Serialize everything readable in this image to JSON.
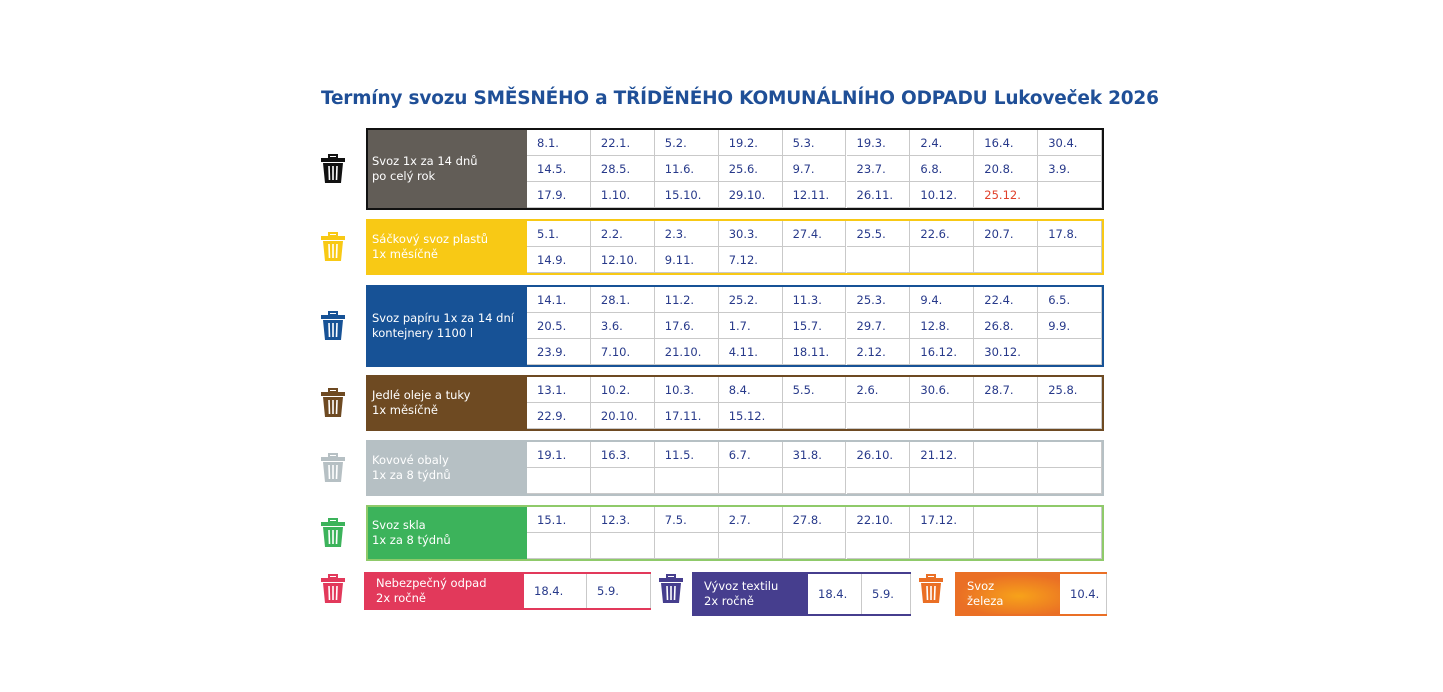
{
  "title": "Termíny svozu SMĚSNÉHO a TŘÍDĚNÉHO KOMUNÁLNÍHO ODPADU Lukoveček 2026",
  "collections": [
    {
      "label": [
        "Svoz 1x za 14 dnů",
        "po celý rok"
      ],
      "color": "#625d57",
      "icon_color": "#111111",
      "border_color": "#111111",
      "rows": [
        [
          "8.1.",
          "22.1.",
          "5.2.",
          "19.2.",
          "5.3.",
          "19.3.",
          "2.4.",
          "16.4.",
          "30.4."
        ],
        [
          "14.5.",
          "28.5.",
          "11.6.",
          "25.6.",
          "9.7.",
          "23.7.",
          "6.8.",
          "20.8.",
          "3.9."
        ],
        [
          "17.9.",
          "1.10.",
          "15.10.",
          "29.10.",
          "12.11.",
          "26.11.",
          "10.12.",
          {
            "text": "25.12.",
            "color": "#e0402a"
          },
          null
        ]
      ]
    },
    {
      "label": [
        "Sáčkový svoz plastů",
        "1x měsíčně"
      ],
      "color": "#f8c915",
      "icon_color": "#f8c915",
      "border_color": "#f8c915",
      "rows": [
        [
          "5.1.",
          "2.2.",
          "2.3.",
          "30.3.",
          "27.4.",
          "25.5.",
          "22.6.",
          "20.7.",
          "17.8."
        ],
        [
          "14.9.",
          "12.10.",
          "9.11.",
          "7.12.",
          null,
          null,
          null,
          null,
          null
        ]
      ]
    },
    {
      "label": [
        "Svoz papíru 1x za 14 dní",
        "kontejnery 1100 l"
      ],
      "color": "#175296",
      "icon_color": "#175296",
      "border_color": "#175296",
      "rows": [
        [
          "14.1.",
          "28.1.",
          "11.2.",
          "25.2.",
          "11.3.",
          "25.3.",
          "9.4.",
          "22.4.",
          "6.5."
        ],
        [
          "20.5.",
          "3.6.",
          "17.6.",
          "1.7.",
          "15.7.",
          "29.7.",
          "12.8.",
          "26.8.",
          "9.9."
        ],
        [
          "23.9.",
          "7.10.",
          "21.10.",
          "4.11.",
          "18.11.",
          "2.12.",
          "16.12.",
          "30.12.",
          null
        ]
      ]
    },
    {
      "label": [
        "Jedlé oleje a tuky",
        "1x měsíčně"
      ],
      "color": "#6e4a22",
      "icon_color": "#6e4a22",
      "border_color": "#6e4a22",
      "rows": [
        [
          "13.1.",
          "10.2.",
          "10.3.",
          "8.4.",
          "5.5.",
          "2.6.",
          "30.6.",
          "28.7.",
          "25.8."
        ],
        [
          "22.9.",
          "20.10.",
          "17.11.",
          "15.12.",
          null,
          null,
          null,
          null,
          null
        ]
      ]
    },
    {
      "label": [
        "Kovové obaly",
        "1x za 8 týdnů"
      ],
      "color": "#b6c0c4",
      "icon_color": "#b6c0c4",
      "border_color": "#b6c0c4",
      "rows": [
        [
          "19.1.",
          "16.3.",
          "11.5.",
          "6.7.",
          "31.8.",
          "26.10.",
          "21.12.",
          null,
          null
        ],
        [
          null,
          null,
          null,
          null,
          null,
          null,
          null,
          null,
          null
        ]
      ]
    },
    {
      "label": [
        "Svoz skla",
        "1x za 8 týdnů"
      ],
      "color": "#3cb35b",
      "icon_color": "#3cb35b",
      "border_color": "#8fca6a",
      "rows": [
        [
          "15.1.",
          "12.3.",
          "7.5.",
          "2.7.",
          "27.8.",
          "22.10.",
          "17.12.",
          null,
          null
        ],
        [
          null,
          null,
          null,
          null,
          null,
          null,
          null,
          null,
          null
        ]
      ]
    }
  ],
  "special": [
    {
      "label": [
        "Nebezpečný odpad",
        "2x ročně"
      ],
      "color": "#e2395b",
      "dates": [
        "18.4.",
        "5.9."
      ]
    },
    {
      "label": [
        "Vývoz textilu",
        "2x ročně"
      ],
      "color": "#463e8e",
      "dates": [
        "18.4.",
        "5.9."
      ]
    },
    {
      "label": [
        "Svoz",
        "železa"
      ],
      "color": "#ea6f25",
      "dates": [
        "10.4."
      ]
    }
  ]
}
